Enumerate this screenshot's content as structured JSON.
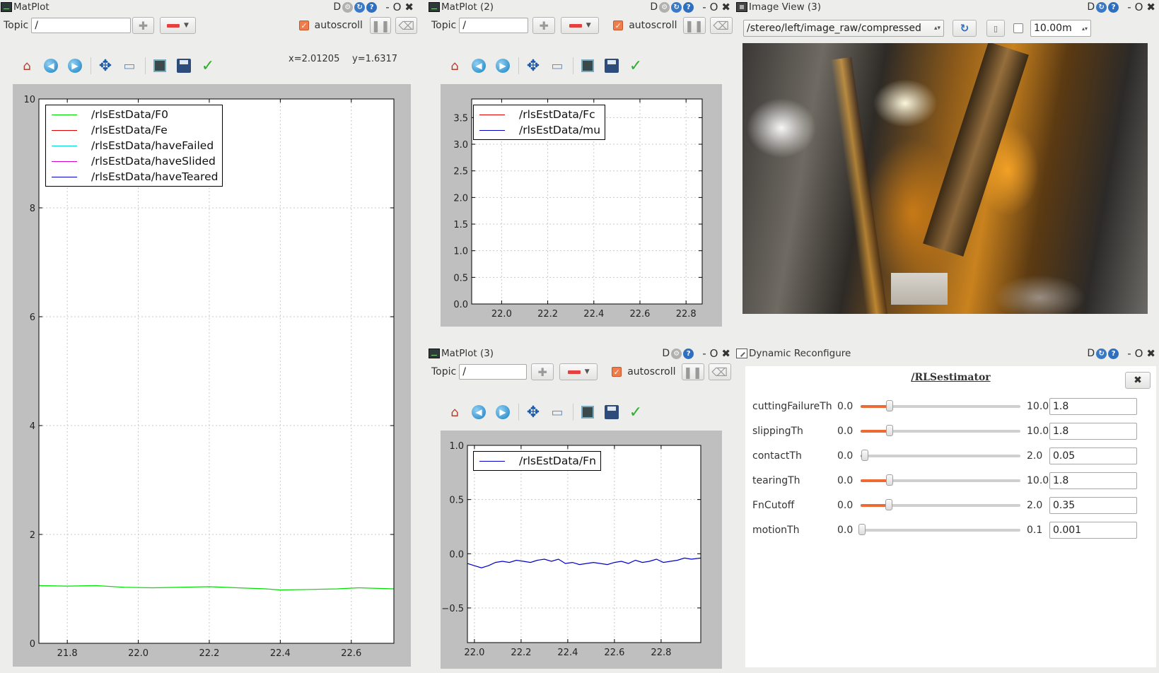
{
  "matplot1": {
    "title": "MatPlot",
    "topic_label": "Topic",
    "topic_value": "/",
    "autoscroll_label": "autoscroll",
    "autoscroll_checked": true,
    "coords": {
      "x": "x=2.01205",
      "y": "y=1.6317"
    },
    "chart_data": {
      "type": "line",
      "xlim": [
        21.72,
        22.72
      ],
      "ylim": [
        0,
        10
      ],
      "xticks": [
        "21.8",
        "22.0",
        "22.2",
        "22.4",
        "22.6"
      ],
      "xtick_values": [
        21.8,
        22.0,
        22.2,
        22.4,
        22.6
      ],
      "yticks": [
        "0",
        "2",
        "4",
        "6",
        "8",
        "10"
      ],
      "ytick_values": [
        0,
        2,
        4,
        6,
        8,
        10
      ],
      "grid": true,
      "legend_position": "upper-left",
      "series": [
        {
          "name": "/rlsEstData/F0",
          "color": "#00e000",
          "x": [
            21.72,
            21.8,
            21.88,
            21.96,
            22.04,
            22.12,
            22.2,
            22.28,
            22.36,
            22.4,
            22.48,
            22.56,
            22.62,
            22.72
          ],
          "y": [
            1.06,
            1.05,
            1.06,
            1.03,
            1.02,
            1.03,
            1.04,
            1.02,
            1.0,
            0.98,
            0.99,
            1.0,
            1.02,
            1.0
          ]
        },
        {
          "name": "/rlsEstData/Fe",
          "color": "#e00000",
          "x": [],
          "y": []
        },
        {
          "name": "/rlsEstData/haveFailed",
          "color": "#00d8d8",
          "x": [],
          "y": []
        },
        {
          "name": "/rlsEstData/haveSlided",
          "color": "#d800d8",
          "x": [],
          "y": []
        },
        {
          "name": "/rlsEstData/haveTeared",
          "color": "#0000c8",
          "x": [],
          "y": []
        }
      ]
    }
  },
  "matplot2": {
    "title": "MatPlot (2)",
    "topic_label": "Topic",
    "topic_value": "/",
    "autoscroll_label": "autoscroll",
    "autoscroll_checked": true,
    "chart_data": {
      "type": "line",
      "xlim": [
        21.87,
        22.87
      ],
      "ylim": [
        0,
        3.85
      ],
      "xticks": [
        "22.0",
        "22.2",
        "22.4",
        "22.6",
        "22.8"
      ],
      "xtick_values": [
        22.0,
        22.2,
        22.4,
        22.6,
        22.8
      ],
      "yticks": [
        "0.0",
        "0.5",
        "1.0",
        "1.5",
        "2.0",
        "2.5",
        "3.0",
        "3.5"
      ],
      "ytick_values": [
        0.0,
        0.5,
        1.0,
        1.5,
        2.0,
        2.5,
        3.0,
        3.5
      ],
      "grid": true,
      "legend_position": "upper-left",
      "series": [
        {
          "name": "/rlsEstData/Fc",
          "color": "#e00000",
          "x": [],
          "y": []
        },
        {
          "name": "/rlsEstData/mu",
          "color": "#0000c8",
          "x": [],
          "y": []
        }
      ]
    }
  },
  "matplot3": {
    "title": "MatPlot (3)",
    "topic_label": "Topic",
    "topic_value": "/",
    "autoscroll_label": "autoscroll",
    "autoscroll_checked": true,
    "chart_data": {
      "type": "line",
      "xlim": [
        21.97,
        22.97
      ],
      "ylim": [
        -0.82,
        1.0
      ],
      "xticks": [
        "22.0",
        "22.2",
        "22.4",
        "22.6",
        "22.8"
      ],
      "xtick_values": [
        22.0,
        22.2,
        22.4,
        22.6,
        22.8
      ],
      "yticks": [
        "−0.5",
        "0.0",
        "0.5",
        "1.0"
      ],
      "ytick_values": [
        -0.5,
        0.0,
        0.5,
        1.0
      ],
      "grid": true,
      "legend_position": "upper-left",
      "series": [
        {
          "name": "/rlsEstData/Fn",
          "color": "#0000c8",
          "x": [
            21.97,
            22.0,
            22.03,
            22.06,
            22.09,
            22.12,
            22.15,
            22.18,
            22.21,
            22.24,
            22.27,
            22.3,
            22.33,
            22.36,
            22.39,
            22.42,
            22.45,
            22.48,
            22.51,
            22.54,
            22.57,
            22.6,
            22.63,
            22.66,
            22.69,
            22.72,
            22.75,
            22.78,
            22.81,
            22.84,
            22.87,
            22.9,
            22.93,
            22.97
          ],
          "y": [
            -0.09,
            -0.11,
            -0.13,
            -0.11,
            -0.08,
            -0.07,
            -0.08,
            -0.06,
            -0.07,
            -0.08,
            -0.06,
            -0.05,
            -0.07,
            -0.05,
            -0.09,
            -0.08,
            -0.1,
            -0.09,
            -0.08,
            -0.09,
            -0.1,
            -0.08,
            -0.07,
            -0.09,
            -0.06,
            -0.08,
            -0.07,
            -0.05,
            -0.08,
            -0.07,
            -0.06,
            -0.04,
            -0.05,
            -0.04
          ]
        }
      ]
    }
  },
  "imageview": {
    "title": "Image View (3)",
    "topic": "/stereo/left/image_raw/compressed",
    "rate": "10.00m"
  },
  "dynreconf": {
    "title": "Dynamic Reconfigure",
    "node": "/RLSestimator",
    "close_label": "✖",
    "params": [
      {
        "name": "cuttingFailureTh",
        "min": "0.0",
        "max": "10.0",
        "value": "1.8",
        "fraction": 0.18
      },
      {
        "name": "slippingTh",
        "min": "0.0",
        "max": "10.0",
        "value": "1.8",
        "fraction": 0.18
      },
      {
        "name": "contactTh",
        "min": "0.0",
        "max": "2.0",
        "value": "0.05",
        "fraction": 0.025
      },
      {
        "name": "tearingTh",
        "min": "0.0",
        "max": "10.0",
        "value": "1.8",
        "fraction": 0.18
      },
      {
        "name": "FnCutoff",
        "min": "0.0",
        "max": "2.0",
        "value": "0.35",
        "fraction": 0.175
      },
      {
        "name": "motionTh",
        "min": "0.0",
        "max": "0.1",
        "value": "0.001",
        "fraction": 0.01
      }
    ]
  },
  "window_controls": {
    "d": "D",
    "min": "-",
    "float": "O",
    "close": "✖"
  }
}
